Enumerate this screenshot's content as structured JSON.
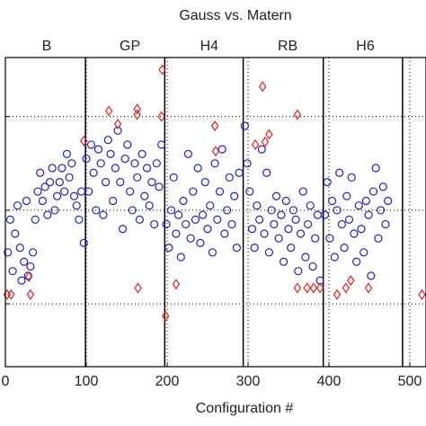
{
  "chart_data": {
    "type": "scatter",
    "title": "Gauss vs. Matern",
    "x_label": "Configuration #",
    "xlim": [
      0,
      520
    ],
    "xticks": [
      0,
      100,
      200,
      300,
      400,
      500
    ],
    "ylim": [
      0.33,
      3.63
    ],
    "yticks": [
      1,
      2,
      3
    ],
    "grid": true,
    "separators": [
      99,
      197,
      294,
      393,
      491
    ],
    "sections": [
      {
        "label": "B",
        "x": 51
      },
      {
        "label": "GP",
        "x": 154
      },
      {
        "label": "H4",
        "x": 252
      },
      {
        "label": "RB",
        "x": 349
      },
      {
        "label": "H6",
        "x": 445
      }
    ],
    "series": [
      {
        "marker": "circle",
        "color": "#1f1fd0",
        "x": [
          3,
          6,
          9,
          12,
          15,
          18,
          20,
          23,
          26,
          28,
          31,
          34,
          37,
          40,
          43,
          46,
          49,
          52,
          55,
          58,
          61,
          64,
          67,
          70,
          73,
          76,
          79,
          82,
          85,
          88,
          91,
          94,
          97,
          100,
          103,
          106,
          109,
          112,
          115,
          118,
          121,
          124,
          127,
          130,
          133,
          136,
          139,
          142,
          145,
          148,
          151,
          154,
          157,
          160,
          163,
          166,
          169,
          172,
          175,
          178,
          181,
          184,
          187,
          190,
          193,
          199,
          202,
          205,
          208,
          211,
          214,
          217,
          220,
          223,
          226,
          229,
          232,
          235,
          238,
          241,
          244,
          247,
          250,
          253,
          256,
          259,
          262,
          265,
          268,
          271,
          274,
          277,
          280,
          283,
          286,
          289,
          296,
          299,
          302,
          305,
          308,
          311,
          314,
          317,
          320,
          323,
          326,
          329,
          332,
          335,
          338,
          341,
          344,
          347,
          350,
          353,
          356,
          359,
          362,
          365,
          368,
          371,
          374,
          377,
          380,
          383,
          386,
          389,
          395,
          398,
          401,
          404,
          407,
          410,
          413,
          416,
          419,
          422,
          425,
          428,
          431,
          434,
          437,
          440,
          443,
          446,
          449,
          452,
          455,
          458,
          461,
          464,
          467,
          470,
          473
        ],
        "values": [
          1.55,
          1.9,
          1.35,
          1.75,
          2.05,
          1.6,
          1.25,
          1.45,
          2.1,
          1.3,
          1.4,
          1.55,
          1.9,
          2.2,
          2.4,
          2.1,
          2.25,
          1.95,
          2.3,
          2.45,
          2.0,
          2.15,
          2.3,
          2.45,
          2.2,
          2.6,
          2.35,
          2.5,
          2.15,
          2.05,
          1.9,
          2.2,
          1.65,
          2.55,
          2.2,
          2.7,
          2.4,
          2.0,
          2.65,
          2.5,
          1.95,
          2.3,
          2.75,
          2.6,
          2.1,
          2.45,
          2.85,
          2.3,
          1.8,
          2.55,
          2.7,
          2.2,
          2.0,
          2.5,
          2.35,
          1.9,
          2.6,
          2.15,
          2.45,
          2.05,
          2.3,
          1.85,
          2.5,
          2.25,
          2.7,
          1.85,
          1.6,
          2.0,
          2.35,
          1.75,
          1.95,
          1.5,
          2.1,
          1.85,
          2.6,
          1.7,
          2.2,
          1.9,
          2.45,
          1.65,
          1.95,
          2.3,
          1.8,
          2.05,
          1.55,
          2.5,
          1.9,
          2.2,
          2.65,
          1.75,
          2.0,
          2.35,
          1.85,
          2.15,
          1.6,
          2.4,
          2.9,
          2.5,
          2.2,
          1.8,
          1.6,
          2.05,
          1.9,
          2.65,
          1.75,
          2.4,
          1.55,
          2.0,
          1.85,
          2.15,
          1.7,
          1.95,
          1.45,
          2.1,
          1.8,
          1.6,
          2.0,
          1.9,
          1.35,
          1.75,
          2.2,
          1.5,
          1.85,
          2.05,
          1.4,
          1.7,
          1.95,
          1.25,
          1.95,
          2.3,
          1.7,
          2.1,
          1.5,
          2.0,
          2.4,
          1.85,
          1.6,
          2.15,
          1.9,
          2.35,
          1.75,
          1.45,
          2.05,
          1.8,
          1.55,
          2.1,
          1.95,
          1.3,
          2.2,
          2.45,
          1.7,
          2.0,
          2.25,
          1.85,
          2.1
        ]
      },
      {
        "marker": "diamond",
        "color": "#e02020",
        "x": [
          2,
          7,
          31,
          29,
          97,
          128,
          139,
          163,
          163,
          164,
          193,
          194,
          198,
          211,
          259,
          260,
          309,
          318,
          326,
          321,
          361,
          361,
          373,
          381,
          389,
          410,
          421,
          427,
          449,
          515
        ],
        "values": [
          1.1,
          1.1,
          1.1,
          1.29,
          2.74,
          3.06,
          2.92,
          3.08,
          3.02,
          1.17,
          3.0,
          3.5,
          0.87,
          1.21,
          2.9,
          2.63,
          2.7,
          3.32,
          2.81,
          2.73,
          3.02,
          1.17,
          1.17,
          1.17,
          1.17,
          1.1,
          1.17,
          1.25,
          1.17,
          1.1
        ]
      }
    ]
  }
}
